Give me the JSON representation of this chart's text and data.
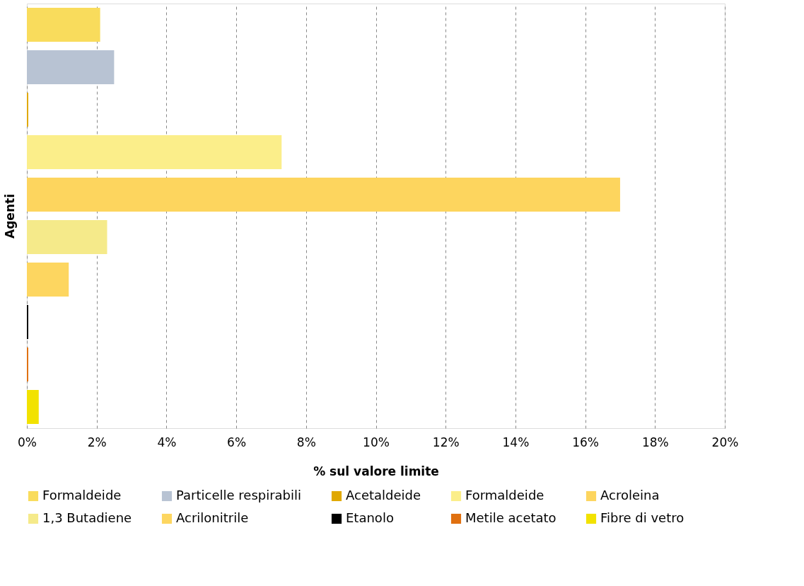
{
  "chart_data": {
    "type": "bar",
    "orientation": "horizontal",
    "xlabel": "% sul valore limite",
    "ylabel": "Agenti",
    "categories": [
      null,
      null,
      null,
      null,
      null,
      null,
      null,
      null,
      null,
      null
    ],
    "xlim": [
      0,
      20
    ],
    "xticks": [
      {
        "value": 0,
        "label": "0%"
      },
      {
        "value": 2,
        "label": "2%"
      },
      {
        "value": 4,
        "label": "4%"
      },
      {
        "value": 6,
        "label": "6%"
      },
      {
        "value": 8,
        "label": "8%"
      },
      {
        "value": 10,
        "label": "10%"
      },
      {
        "value": 12,
        "label": "12%"
      },
      {
        "value": 14,
        "label": "14%"
      },
      {
        "value": 16,
        "label": "16%"
      },
      {
        "value": 18,
        "label": "18%"
      },
      {
        "value": 20,
        "label": "20%"
      }
    ],
    "grid": "x",
    "legend": "bottom",
    "series": [
      {
        "name": "Formaldeide",
        "color": "#f9dc5c",
        "values": [
          2.1,
          null,
          null,
          null,
          null,
          null,
          null,
          null,
          null,
          null
        ]
      },
      {
        "name": "Particelle respirabili",
        "color": "#b8c3d3",
        "values": [
          null,
          2.5,
          null,
          null,
          null,
          null,
          null,
          null,
          null,
          null
        ]
      },
      {
        "name": "Acetaldeide",
        "color": "#e0a800",
        "values": [
          null,
          null,
          0.04,
          null,
          null,
          null,
          null,
          null,
          null,
          null
        ]
      },
      {
        "name": "Formaldeide",
        "color": "#fbee8a",
        "values": [
          null,
          null,
          null,
          7.3,
          null,
          null,
          null,
          null,
          null,
          null
        ]
      },
      {
        "name": "Acroleina",
        "color": "#fdd55e",
        "values": [
          null,
          null,
          null,
          null,
          17.0,
          null,
          null,
          null,
          null,
          null
        ]
      },
      {
        "name": "1,3 Butadiene",
        "color": "#f5ea8a",
        "values": [
          null,
          null,
          null,
          null,
          null,
          2.3,
          null,
          null,
          null,
          null
        ]
      },
      {
        "name": "Acrilonitrile",
        "color": "#fdd660",
        "values": [
          null,
          null,
          null,
          null,
          null,
          null,
          1.2,
          null,
          null,
          null
        ]
      },
      {
        "name": "Etanolo",
        "color": "#000000",
        "values": [
          null,
          null,
          null,
          null,
          null,
          null,
          null,
          0.04,
          null,
          null
        ]
      },
      {
        "name": "Metile acetato",
        "color": "#e07010",
        "values": [
          null,
          null,
          null,
          null,
          null,
          null,
          null,
          null,
          0.04,
          null
        ]
      },
      {
        "name": "Fibre di vetro",
        "color": "#f2e200",
        "values": [
          null,
          null,
          null,
          null,
          null,
          null,
          null,
          null,
          null,
          0.34
        ]
      }
    ]
  }
}
